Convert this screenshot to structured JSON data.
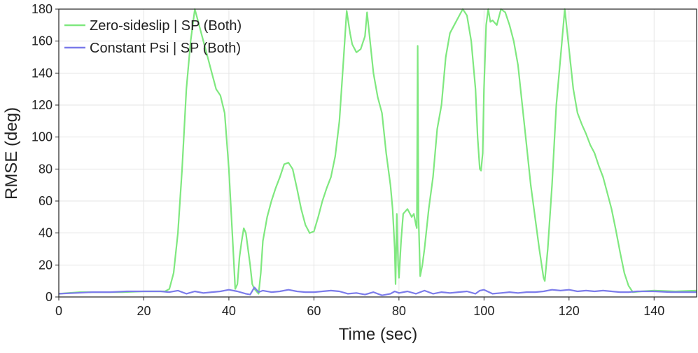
{
  "chart_data": {
    "type": "line",
    "xlabel": "Time (sec)",
    "ylabel": "RMSE (deg)",
    "xlim": [
      0,
      150
    ],
    "xticks": [
      0,
      20,
      40,
      60,
      80,
      100,
      120,
      140
    ],
    "ylim": [
      0,
      180
    ],
    "yticks": [
      0,
      20,
      40,
      60,
      80,
      100,
      120,
      140,
      160,
      180
    ],
    "grid": true,
    "legend": "upper left",
    "series": [
      {
        "name": "Zero-sideslip | SP (Both)",
        "color": "#7fe87f",
        "x": [
          0,
          5,
          10,
          15,
          20,
          25,
          26,
          27,
          28,
          29,
          30,
          31,
          32,
          33,
          34,
          35,
          36,
          37,
          38,
          39,
          40,
          41,
          41.5,
          42,
          42.5,
          43,
          43.5,
          44,
          45,
          45.5,
          46,
          47,
          47.5,
          48,
          49,
          50,
          51,
          52,
          53,
          54,
          55,
          56,
          57,
          58,
          59,
          60,
          61,
          62,
          63,
          64,
          65,
          66,
          67,
          67.7,
          68.5,
          69,
          70,
          71,
          72,
          72.5,
          73,
          74,
          75,
          76,
          77,
          78,
          78.5,
          79,
          79.2,
          79.5,
          79.8,
          80,
          80.5,
          81,
          82,
          83,
          83.5,
          84,
          84.2,
          84.4,
          84.6,
          85,
          85.5,
          86,
          87,
          88,
          89,
          90,
          91,
          92,
          93,
          94,
          95,
          96,
          97,
          98,
          98.5,
          99,
          99.3,
          99.7,
          100,
          100.5,
          101,
          101.5,
          102,
          103,
          104,
          105,
          106,
          107,
          108,
          109,
          110,
          111,
          112,
          113,
          114,
          114.3,
          115,
          116,
          117,
          118,
          119,
          120,
          121,
          122,
          123,
          124,
          125,
          126,
          127,
          128,
          129,
          130,
          131,
          132,
          133,
          134,
          135,
          137,
          140,
          145,
          150
        ],
        "values": [
          2,
          3,
          3,
          3,
          3.5,
          3.5,
          5,
          15,
          40,
          80,
          130,
          160,
          180,
          170,
          160,
          150,
          140,
          130,
          126,
          115,
          80,
          30,
          5,
          8,
          25,
          35,
          43,
          40,
          20,
          8,
          5,
          2,
          15,
          35,
          50,
          60,
          68,
          75,
          83,
          84,
          80,
          68,
          55,
          45,
          40,
          41,
          50,
          60,
          68,
          75,
          88,
          110,
          150,
          179,
          165,
          158,
          153,
          155,
          163,
          178,
          165,
          140,
          125,
          115,
          90,
          70,
          55,
          30,
          8,
          52,
          20,
          12,
          35,
          52,
          55,
          50,
          52,
          45,
          43,
          157,
          50,
          13,
          20,
          30,
          55,
          75,
          105,
          120,
          150,
          165,
          170,
          175,
          180,
          176,
          160,
          130,
          100,
          80,
          79,
          90,
          130,
          170,
          180,
          172,
          173,
          170,
          180,
          178,
          170,
          160,
          145,
          120,
          95,
          70,
          50,
          30,
          12,
          10,
          30,
          70,
          120,
          150,
          180,
          155,
          130,
          115,
          108,
          102,
          95,
          90,
          82,
          75,
          65,
          55,
          42,
          28,
          15,
          7,
          3,
          3.5,
          4,
          3.5,
          4
        ]
      },
      {
        "name": "Constant Psi | SP (Both)",
        "color": "#7b7bea",
        "x": [
          0,
          4,
          8,
          12,
          16,
          20,
          24,
          26,
          28,
          30,
          32,
          34,
          36,
          38,
          40,
          42,
          44,
          45,
          46,
          47,
          48,
          50,
          52,
          54,
          56,
          58,
          60,
          62,
          64,
          66,
          68,
          70,
          72,
          74,
          76,
          78,
          79,
          80,
          82,
          84,
          86,
          88,
          90,
          92,
          94,
          96,
          98,
          99,
          100,
          102,
          104,
          106,
          108,
          110,
          112,
          114,
          116,
          118,
          120,
          122,
          124,
          126,
          128,
          130,
          132,
          134,
          136,
          140,
          144,
          148,
          150
        ],
        "values": [
          2,
          2.5,
          3,
          3,
          3.5,
          3.5,
          3.5,
          3,
          4,
          2,
          3.5,
          2.5,
          3,
          3.5,
          4.5,
          3.5,
          2,
          1.5,
          6,
          3,
          4,
          3,
          3.5,
          4.5,
          3.5,
          3,
          3,
          3.5,
          4,
          3.5,
          2,
          2.5,
          1.5,
          3,
          1,
          2,
          3.5,
          2.5,
          3.5,
          2,
          4,
          2,
          3,
          2.5,
          3,
          3.5,
          2,
          4,
          4.5,
          2,
          2.5,
          3,
          2.5,
          3,
          3,
          3.5,
          4.5,
          4,
          4.5,
          3.5,
          4,
          3.5,
          4,
          3.5,
          3,
          3,
          3.5,
          3.5,
          3,
          3,
          3
        ]
      }
    ]
  }
}
